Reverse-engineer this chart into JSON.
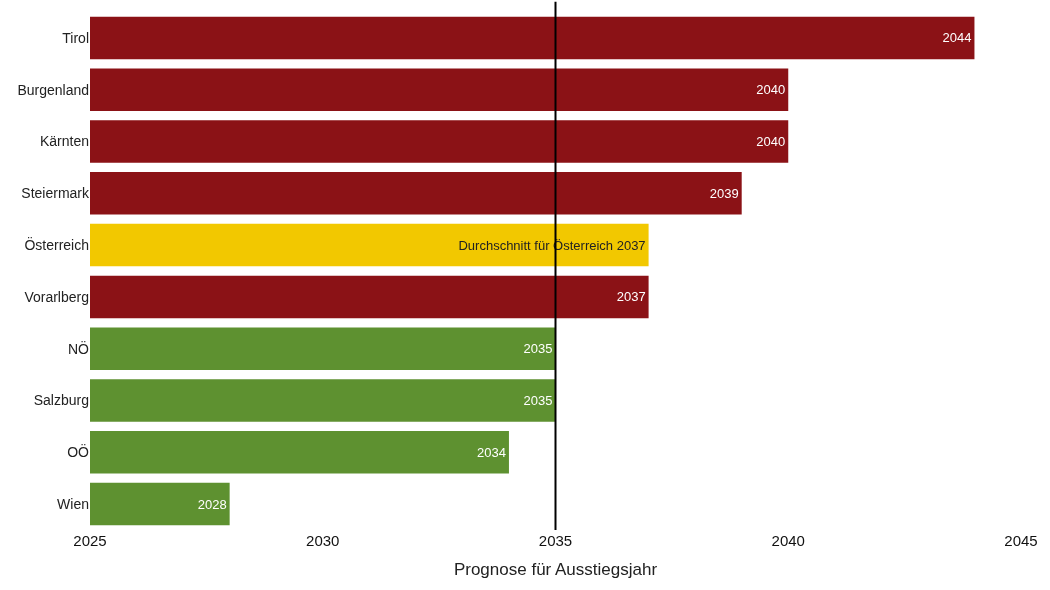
{
  "chart_data": {
    "type": "bar",
    "orientation": "horizontal",
    "xlabel": "Prognose für Ausstiegsjahr",
    "categories": [
      "Tirol",
      "Burgenland",
      "Kärnten",
      "Steiermark",
      "Österreich",
      "Vorarlberg",
      "NÖ",
      "Salzburg",
      "OÖ",
      "Wien"
    ],
    "values": [
      2044,
      2040,
      2040,
      2039,
      2037,
      2037,
      2035,
      2035,
      2034,
      2028
    ],
    "colors": [
      "#8b1216",
      "#8b1216",
      "#8b1216",
      "#8b1216",
      "#f2c800",
      "#8b1216",
      "#5e9130",
      "#5e9130",
      "#5e9130",
      "#5e9130"
    ],
    "value_labels": [
      "2044",
      "2040",
      "2040",
      "2039",
      "Durchschnitt für Österreich 2037",
      "2037",
      "2035",
      "2035",
      "2034",
      "2028"
    ],
    "xlim": [
      2025,
      2045
    ],
    "xticks": [
      2025,
      2030,
      2035,
      2040,
      2045
    ],
    "ref_lines": [
      {
        "axis": "x",
        "value": 2035,
        "color": "#000000"
      }
    ]
  }
}
